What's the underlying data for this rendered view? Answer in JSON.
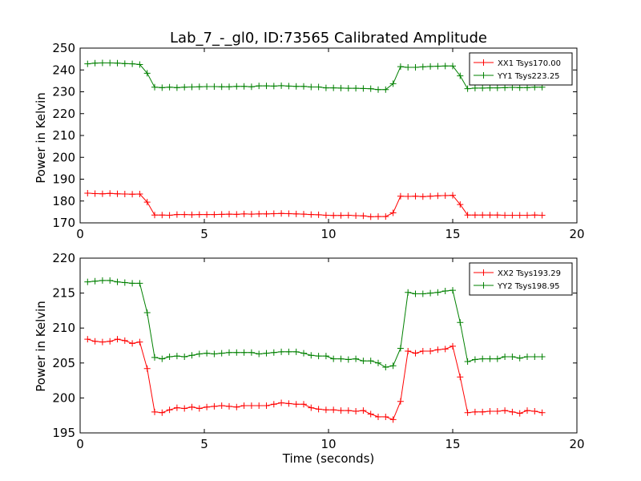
{
  "chart_data": [
    {
      "type": "line",
      "title": "Lab_7_-_gl0, ID:73565 Calibrated Amplitude",
      "xlabel": "",
      "ylabel": "Power in Kelvin",
      "xlim": [
        0,
        20
      ],
      "ylim": [
        170,
        250
      ],
      "xticks": [
        0,
        5,
        10,
        15,
        20
      ],
      "yticks": [
        170,
        180,
        190,
        200,
        210,
        220,
        230,
        240,
        250
      ],
      "grid": false,
      "legend_position": "top-right",
      "x": [
        0.3,
        0.6,
        0.9,
        1.2,
        1.5,
        1.8,
        2.1,
        2.4,
        2.7,
        3.0,
        3.3,
        3.6,
        3.9,
        4.2,
        4.5,
        4.8,
        5.1,
        5.4,
        5.7,
        6.0,
        6.3,
        6.6,
        6.9,
        7.2,
        7.5,
        7.8,
        8.1,
        8.4,
        8.7,
        9.0,
        9.3,
        9.6,
        9.9,
        10.2,
        10.5,
        10.8,
        11.1,
        11.4,
        11.7,
        12.0,
        12.3,
        12.6,
        12.9,
        13.2,
        13.5,
        13.8,
        14.1,
        14.4,
        14.7,
        15.0,
        15.3,
        15.6,
        15.9,
        16.2,
        16.5,
        16.8,
        17.1,
        17.4,
        17.7,
        18.0,
        18.3,
        18.6
      ],
      "series": [
        {
          "name": "XX1 Tsys170.00",
          "color": "#ff0000",
          "values": [
            183.6,
            183.4,
            183.3,
            183.5,
            183.3,
            183.2,
            183.1,
            183.2,
            179.5,
            173.6,
            173.6,
            173.5,
            173.8,
            173.8,
            173.7,
            173.8,
            173.8,
            173.8,
            173.9,
            174.0,
            173.9,
            174.1,
            174.0,
            174.1,
            174.1,
            174.2,
            174.3,
            174.2,
            174.1,
            174.0,
            173.8,
            173.7,
            173.5,
            173.4,
            173.4,
            173.5,
            173.3,
            173.2,
            172.8,
            172.9,
            172.9,
            174.6,
            182.2,
            182.1,
            182.2,
            182.0,
            182.2,
            182.4,
            182.5,
            182.6,
            178.4,
            173.6,
            173.6,
            173.6,
            173.6,
            173.6,
            173.5,
            173.5,
            173.5,
            173.5,
            173.6,
            173.5
          ]
        },
        {
          "name": "YY1 Tsys223.25",
          "color": "#008000",
          "values": [
            242.8,
            243.1,
            243.2,
            243.2,
            243.1,
            242.9,
            242.8,
            242.5,
            238.5,
            232.1,
            231.9,
            232.1,
            231.9,
            232.1,
            232.2,
            232.3,
            232.4,
            232.4,
            232.3,
            232.3,
            232.5,
            232.5,
            232.3,
            232.7,
            232.7,
            232.6,
            232.8,
            232.6,
            232.5,
            232.5,
            232.2,
            232.2,
            231.8,
            231.8,
            231.7,
            231.6,
            231.6,
            231.5,
            231.4,
            231.0,
            231.0,
            233.7,
            241.5,
            241.2,
            241.2,
            241.4,
            241.6,
            241.7,
            241.8,
            241.8,
            237.3,
            231.4,
            231.7,
            231.7,
            231.8,
            231.8,
            231.9,
            232.0,
            231.9,
            231.9,
            232.1,
            232.1
          ]
        }
      ]
    },
    {
      "type": "line",
      "title": "",
      "xlabel": "Time (seconds)",
      "ylabel": "Power in Kelvin",
      "xlim": [
        0,
        20
      ],
      "ylim": [
        195,
        220
      ],
      "xticks": [
        0,
        5,
        10,
        15,
        20
      ],
      "yticks": [
        195,
        200,
        205,
        210,
        215,
        220
      ],
      "grid": false,
      "legend_position": "top-right",
      "x": [
        0.3,
        0.6,
        0.9,
        1.2,
        1.5,
        1.8,
        2.1,
        2.4,
        2.7,
        3.0,
        3.3,
        3.6,
        3.9,
        4.2,
        4.5,
        4.8,
        5.1,
        5.4,
        5.7,
        6.0,
        6.3,
        6.6,
        6.9,
        7.2,
        7.5,
        7.8,
        8.1,
        8.4,
        8.7,
        9.0,
        9.3,
        9.6,
        9.9,
        10.2,
        10.5,
        10.8,
        11.1,
        11.4,
        11.7,
        12.0,
        12.3,
        12.6,
        12.9,
        13.2,
        13.5,
        13.8,
        14.1,
        14.4,
        14.7,
        15.0,
        15.3,
        15.6,
        15.9,
        16.2,
        16.5,
        16.8,
        17.1,
        17.4,
        17.7,
        18.0,
        18.3,
        18.6
      ],
      "series": [
        {
          "name": "XX2 Tsys193.29",
          "color": "#ff0000",
          "values": [
            208.4,
            208.1,
            208.0,
            208.1,
            208.4,
            208.2,
            207.8,
            208.0,
            204.2,
            198.0,
            197.9,
            198.3,
            198.6,
            198.5,
            198.7,
            198.5,
            198.7,
            198.8,
            198.9,
            198.8,
            198.7,
            198.9,
            198.9,
            198.9,
            198.9,
            199.1,
            199.3,
            199.2,
            199.1,
            199.1,
            198.6,
            198.4,
            198.3,
            198.3,
            198.2,
            198.2,
            198.1,
            198.2,
            197.7,
            197.3,
            197.3,
            196.9,
            199.5,
            206.7,
            206.4,
            206.7,
            206.7,
            206.9,
            207.0,
            207.4,
            203.0,
            197.9,
            198.0,
            198.0,
            198.1,
            198.1,
            198.2,
            198.0,
            197.8,
            198.2,
            198.1,
            197.9
          ]
        },
        {
          "name": "YY2 Tsys198.95",
          "color": "#008000",
          "values": [
            216.6,
            216.7,
            216.8,
            216.8,
            216.6,
            216.5,
            216.4,
            216.4,
            212.2,
            205.8,
            205.6,
            205.9,
            206.0,
            205.9,
            206.1,
            206.3,
            206.4,
            206.3,
            206.4,
            206.5,
            206.5,
            206.5,
            206.5,
            206.3,
            206.4,
            206.5,
            206.6,
            206.6,
            206.6,
            206.4,
            206.1,
            206.0,
            206.0,
            205.6,
            205.6,
            205.5,
            205.6,
            205.3,
            205.3,
            205.0,
            204.4,
            204.6,
            207.1,
            215.1,
            214.9,
            214.9,
            215.0,
            215.1,
            215.3,
            215.4,
            210.8,
            205.2,
            205.5,
            205.6,
            205.6,
            205.6,
            205.9,
            205.9,
            205.7,
            205.9,
            205.9,
            205.9
          ]
        }
      ]
    }
  ]
}
